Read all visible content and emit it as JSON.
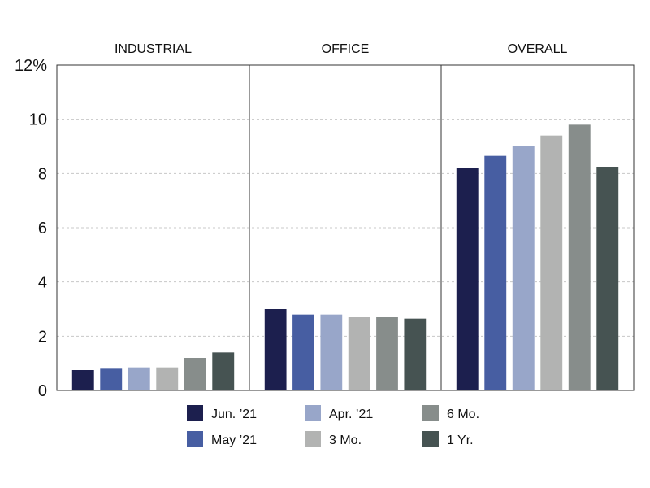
{
  "chart_data": {
    "type": "bar",
    "panels": [
      "INDUSTRIAL",
      "OFFICE",
      "OVERALL"
    ],
    "series": [
      {
        "name": "Jun. ’21",
        "color": "#1c1f4e",
        "values": [
          0.75,
          3.0,
          8.2
        ]
      },
      {
        "name": "May ’21",
        "color": "#475ea2",
        "values": [
          0.8,
          2.8,
          8.65
        ]
      },
      {
        "name": "Apr. ’21",
        "color": "#98a6c9",
        "values": [
          0.85,
          2.8,
          9.0
        ]
      },
      {
        "name": "3 Mo.",
        "color": "#b2b3b2",
        "values": [
          0.85,
          2.7,
          9.4
        ]
      },
      {
        "name": "6 Mo.",
        "color": "#878d8b",
        "values": [
          1.2,
          2.7,
          9.8
        ]
      },
      {
        "name": "1 Yr.",
        "color": "#465352",
        "values": [
          1.4,
          2.65,
          8.25
        ]
      }
    ],
    "yticks": [
      "0",
      "2",
      "4",
      "6",
      "8",
      "10",
      "12%"
    ],
    "ylim": [
      0,
      12
    ],
    "grid": true,
    "legend_position": "bottom"
  }
}
